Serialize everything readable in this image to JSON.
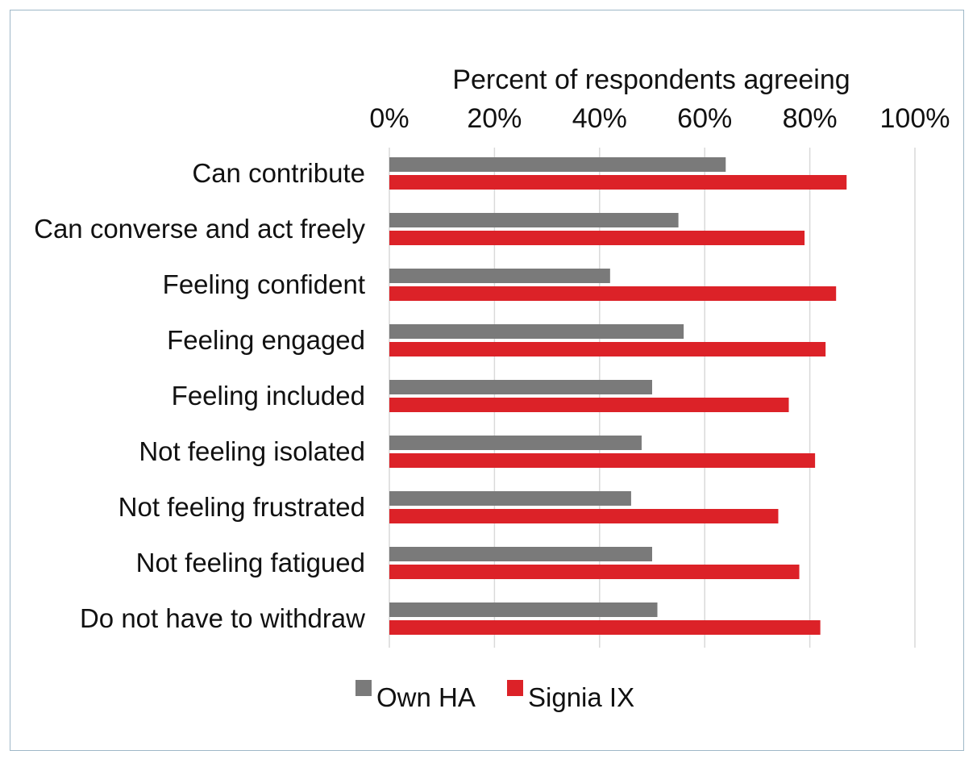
{
  "chart_data": {
    "type": "bar",
    "orientation": "horizontal",
    "title": "",
    "xlabel": "Percent of respondents agreeing",
    "x_ticks": [
      "0%",
      "20%",
      "40%",
      "60%",
      "80%",
      "100%"
    ],
    "xlim": [
      0,
      100
    ],
    "grid": true,
    "legend_position": "bottom",
    "categories": [
      "Can contribute",
      "Can converse and act freely",
      "Feeling confident",
      "Feeling engaged",
      "Feeling included",
      "Not feeling isolated",
      "Not feeling frustrated",
      "Not feeling fatigued",
      "Do not have to withdraw"
    ],
    "series": [
      {
        "name": "Own HA",
        "color": "#7a7a7a",
        "values": [
          64,
          55,
          42,
          56,
          50,
          48,
          46,
          50,
          51
        ]
      },
      {
        "name": "Signia IX",
        "color": "#dc2228",
        "values": [
          87,
          79,
          85,
          83,
          76,
          81,
          74,
          78,
          82
        ]
      }
    ]
  }
}
